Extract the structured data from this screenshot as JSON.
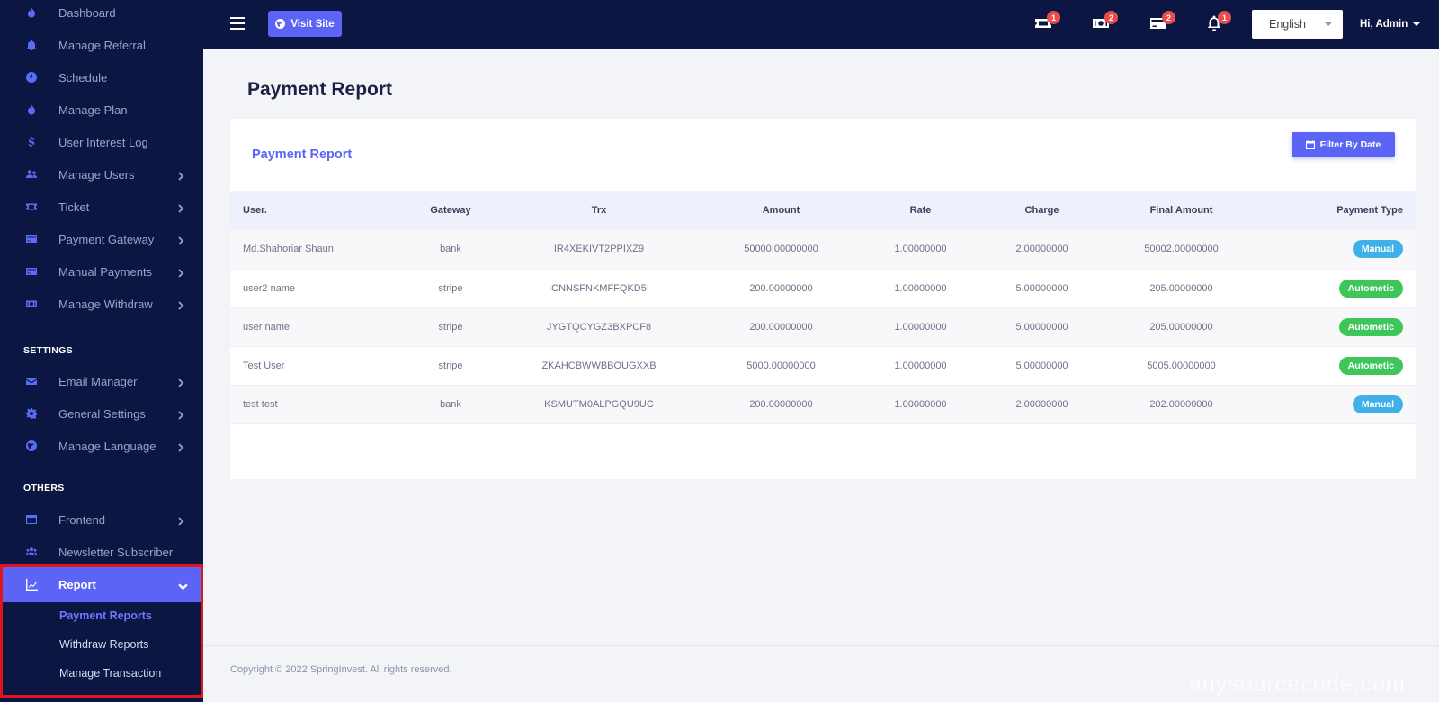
{
  "sidebar": {
    "items": [
      {
        "label": "Dashboard",
        "icon": "fire-icon"
      },
      {
        "label": "Manage Referral",
        "icon": "bell-icon"
      },
      {
        "label": "Schedule",
        "icon": "clock-icon"
      },
      {
        "label": "Manage Plan",
        "icon": "fire-icon"
      },
      {
        "label": "User Interest Log",
        "icon": "dollar-icon"
      },
      {
        "label": "Manage Users",
        "icon": "users-icon"
      },
      {
        "label": "Ticket",
        "icon": "ticket-icon"
      },
      {
        "label": "Payment Gateway",
        "icon": "credit-card-icon"
      },
      {
        "label": "Manual Payments",
        "icon": "credit-card-icon"
      },
      {
        "label": "Manage Withdraw",
        "icon": "money-bill-icon"
      }
    ],
    "settings_title": "SETTINGS",
    "settings_items": [
      {
        "label": "Email Manager",
        "icon": "envelope-icon"
      },
      {
        "label": "General Settings",
        "icon": "gear-icon"
      },
      {
        "label": "Manage Language",
        "icon": "globe-icon"
      }
    ],
    "others_title": "OTHERS",
    "others_items": [
      {
        "label": "Frontend",
        "icon": "layout-icon"
      },
      {
        "label": "Newsletter Subscriber",
        "icon": "users-icon"
      }
    ],
    "report": {
      "label": "Report",
      "icon": "chart-line-icon",
      "sub": [
        "Payment Reports",
        "Withdraw Reports",
        "Manage Transaction"
      ]
    }
  },
  "topbar": {
    "visit_site": "Visit Site",
    "badges": {
      "ticket": "1",
      "withdraw": "2",
      "payments": "2",
      "notifications": "1"
    },
    "language": "English",
    "admin": "Hi, Admin"
  },
  "main": {
    "page_title": "Payment Report",
    "card_title": "Payment Report",
    "filter_button": "Filter By Date",
    "columns": [
      "User.",
      "Gateway",
      "Trx",
      "Amount",
      "Rate",
      "Charge",
      "Final Amount",
      "Payment Type"
    ],
    "rows": [
      [
        "Md.Shahoriar Shaun",
        "bank",
        "IR4XEKIVT2PPIXZ9",
        "50000.00000000",
        "1.00000000",
        "2.00000000",
        "50002.00000000",
        "Manual"
      ],
      [
        "user2 name",
        "stripe",
        "ICNNSFNKMFFQKD5I",
        "200.00000000",
        "1.00000000",
        "5.00000000",
        "205.00000000",
        "Autometic"
      ],
      [
        "user name",
        "stripe",
        "JYGTQCYGZ3BXPCF8",
        "200.00000000",
        "1.00000000",
        "5.00000000",
        "205.00000000",
        "Autometic"
      ],
      [
        "Test User",
        "stripe",
        "ZKAHCBWWBBOUGXXB",
        "5000.00000000",
        "1.00000000",
        "5.00000000",
        "5005.00000000",
        "Autometic"
      ],
      [
        "test test",
        "bank",
        "KSMUTM0ALPGQU9UC",
        "200.00000000",
        "1.00000000",
        "2.00000000",
        "202.00000000",
        "Manual"
      ]
    ]
  },
  "footer": {
    "copyright": "Copyright © 2022 SpringInvest. All rights reserved.",
    "watermark": "anysourcecode.com"
  },
  "colors": {
    "sidebar_bg": "#0b1742",
    "accent": "#5b64f5",
    "manual": "#3fb1e8",
    "automatic": "#3ec65a",
    "badge": "#ea4c4c",
    "highlight_border": "#e0141b"
  }
}
